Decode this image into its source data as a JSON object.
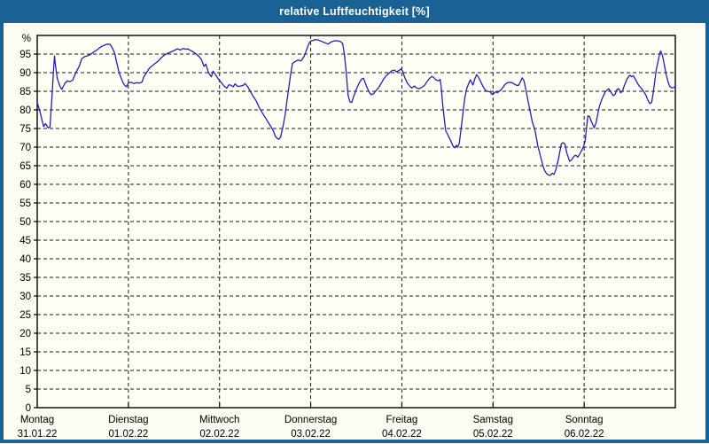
{
  "window": {
    "title": "relative Luftfeuchtigkeit [%]"
  },
  "colors": {
    "frame": "#1a6294",
    "title_text": "#ffffff",
    "content_bg": "#fcfcf2",
    "plot_bg": "#fffff6",
    "grid": "#1a1a1a",
    "axis": "#000000",
    "line": "#2121b4",
    "label_text": "#000000"
  },
  "chart_data": {
    "type": "line",
    "title": "relative Luftfeuchtigkeit [%]",
    "ylabel": "%",
    "xlabel": "",
    "ylim": [
      0,
      100
    ],
    "yticks": [
      0,
      5,
      10,
      15,
      20,
      25,
      30,
      35,
      40,
      45,
      50,
      55,
      60,
      65,
      70,
      75,
      80,
      85,
      90,
      95
    ],
    "grid": "dashed",
    "legend_position": "none",
    "x_axis": {
      "unit": "days",
      "range_days": 7,
      "day_labels": [
        {
          "name": "Montag",
          "date": "31.01.22"
        },
        {
          "name": "Dienstag",
          "date": "01.02.22"
        },
        {
          "name": "Mittwoch",
          "date": "02.02.22"
        },
        {
          "name": "Donnerstag",
          "date": "03.02.22"
        },
        {
          "name": "Freitag",
          "date": "04.02.22"
        },
        {
          "name": "Samstag",
          "date": "05.02.22"
        },
        {
          "name": "Sonntag",
          "date": "06.02.22"
        }
      ]
    },
    "series": [
      {
        "name": "relative Luftfeuchtigkeit",
        "points": [
          [
            0.0,
            82
          ],
          [
            0.03,
            79.5
          ],
          [
            0.07,
            75.5
          ],
          [
            0.09,
            76.3
          ],
          [
            0.12,
            75.2
          ],
          [
            0.14,
            75.4
          ],
          [
            0.16,
            83
          ],
          [
            0.18,
            91
          ],
          [
            0.19,
            94.5
          ],
          [
            0.2,
            92
          ],
          [
            0.22,
            88.5
          ],
          [
            0.25,
            86.3
          ],
          [
            0.27,
            85.5
          ],
          [
            0.3,
            87
          ],
          [
            0.33,
            87.8
          ],
          [
            0.36,
            87.6
          ],
          [
            0.39,
            88
          ],
          [
            0.42,
            89.8
          ],
          [
            0.46,
            91.7
          ],
          [
            0.49,
            93.8
          ],
          [
            0.52,
            94.3
          ],
          [
            0.56,
            94.6
          ],
          [
            0.59,
            95
          ],
          [
            0.62,
            95.6
          ],
          [
            0.65,
            96
          ],
          [
            0.68,
            96.6
          ],
          [
            0.71,
            97.1
          ],
          [
            0.74,
            97.4
          ],
          [
            0.77,
            97.7
          ],
          [
            0.8,
            97.6
          ],
          [
            0.83,
            96.3
          ],
          [
            0.85,
            95.2
          ],
          [
            0.87,
            92.9
          ],
          [
            0.9,
            89.8
          ],
          [
            0.92,
            88.6
          ],
          [
            0.94,
            87.4
          ],
          [
            0.96,
            86.6
          ],
          [
            0.98,
            86.2
          ],
          [
            1.0,
            87.3
          ],
          [
            1.03,
            87.4
          ],
          [
            1.06,
            87.1
          ],
          [
            1.09,
            87.3
          ],
          [
            1.12,
            87.2
          ],
          [
            1.15,
            87.5
          ],
          [
            1.17,
            88.9
          ],
          [
            1.2,
            90
          ],
          [
            1.23,
            91.2
          ],
          [
            1.26,
            91.8
          ],
          [
            1.29,
            92.4
          ],
          [
            1.33,
            93.2
          ],
          [
            1.36,
            94
          ],
          [
            1.4,
            94.8
          ],
          [
            1.43,
            95.2
          ],
          [
            1.46,
            95.5
          ],
          [
            1.49,
            95.8
          ],
          [
            1.52,
            96.2
          ],
          [
            1.54,
            96.4
          ],
          [
            1.57,
            96.1
          ],
          [
            1.6,
            96.5
          ],
          [
            1.63,
            96.3
          ],
          [
            1.65,
            96.4
          ],
          [
            1.68,
            96
          ],
          [
            1.71,
            95.6
          ],
          [
            1.75,
            94.9
          ],
          [
            1.78,
            94.2
          ],
          [
            1.8,
            93.6
          ],
          [
            1.83,
            91.7
          ],
          [
            1.85,
            92.3
          ],
          [
            1.88,
            89.9
          ],
          [
            1.91,
            88.9
          ],
          [
            1.93,
            90.4
          ],
          [
            1.96,
            89.3
          ],
          [
            1.99,
            88.2
          ],
          [
            2.02,
            87.3
          ],
          [
            2.05,
            86.4
          ],
          [
            2.08,
            85.8
          ],
          [
            2.1,
            86.7
          ],
          [
            2.12,
            86.7
          ],
          [
            2.15,
            86.2
          ],
          [
            2.17,
            87
          ],
          [
            2.2,
            86.3
          ],
          [
            2.23,
            86.4
          ],
          [
            2.26,
            86.6
          ],
          [
            2.28,
            87.1
          ],
          [
            2.31,
            86.2
          ],
          [
            2.34,
            84.9
          ],
          [
            2.37,
            83.6
          ],
          [
            2.4,
            82.5
          ],
          [
            2.44,
            80.4
          ],
          [
            2.49,
            78.4
          ],
          [
            2.54,
            76.4
          ],
          [
            2.59,
            74.4
          ],
          [
            2.61,
            73
          ],
          [
            2.63,
            72.4
          ],
          [
            2.65,
            72.1
          ],
          [
            2.67,
            72.7
          ],
          [
            2.7,
            76
          ],
          [
            2.72,
            78.8
          ],
          [
            2.74,
            82.5
          ],
          [
            2.76,
            86
          ],
          [
            2.78,
            89.5
          ],
          [
            2.8,
            92.5
          ],
          [
            2.83,
            93
          ],
          [
            2.86,
            93.4
          ],
          [
            2.88,
            93.2
          ],
          [
            2.9,
            93.3
          ],
          [
            2.93,
            94.5
          ],
          [
            2.96,
            96.5
          ],
          [
            2.98,
            97.8
          ],
          [
            3.0,
            98.5
          ],
          [
            3.03,
            98.7
          ],
          [
            3.05,
            98.9
          ],
          [
            3.08,
            98.8
          ],
          [
            3.11,
            98.5
          ],
          [
            3.14,
            98.2
          ],
          [
            3.17,
            97.9
          ],
          [
            3.19,
            97.7
          ],
          [
            3.22,
            98.2
          ],
          [
            3.25,
            98.5
          ],
          [
            3.28,
            98.6
          ],
          [
            3.31,
            98.5
          ],
          [
            3.33,
            98.3
          ],
          [
            3.35,
            97.8
          ],
          [
            3.37,
            95
          ],
          [
            3.39,
            90
          ],
          [
            3.41,
            84
          ],
          [
            3.43,
            82.2
          ],
          [
            3.45,
            82
          ],
          [
            3.47,
            83.5
          ],
          [
            3.5,
            85.5
          ],
          [
            3.53,
            87.2
          ],
          [
            3.56,
            88.3
          ],
          [
            3.58,
            88.5
          ],
          [
            3.61,
            86.5
          ],
          [
            3.64,
            84.8
          ],
          [
            3.66,
            84.1
          ],
          [
            3.69,
            84.3
          ],
          [
            3.71,
            85
          ],
          [
            3.74,
            85.8
          ],
          [
            3.77,
            87
          ],
          [
            3.8,
            88.3
          ],
          [
            3.83,
            89.2
          ],
          [
            3.86,
            89.9
          ],
          [
            3.89,
            90.5
          ],
          [
            3.92,
            90.7
          ],
          [
            3.94,
            90.2
          ],
          [
            3.97,
            90.6
          ],
          [
            3.99,
            91
          ],
          [
            4.01,
            90.3
          ],
          [
            4.03,
            88.8
          ],
          [
            4.06,
            87.2
          ],
          [
            4.09,
            86.3
          ],
          [
            4.11,
            85.9
          ],
          [
            4.14,
            86.4
          ],
          [
            4.16,
            85.9
          ],
          [
            4.19,
            85.7
          ],
          [
            4.22,
            86.1
          ],
          [
            4.25,
            86.6
          ],
          [
            4.27,
            87.4
          ],
          [
            4.3,
            88.4
          ],
          [
            4.33,
            89
          ],
          [
            4.35,
            88.7
          ],
          [
            4.37,
            88.1
          ],
          [
            4.4,
            87.8
          ],
          [
            4.42,
            88.2
          ],
          [
            4.43,
            86.5
          ],
          [
            4.45,
            81
          ],
          [
            4.48,
            74.5
          ],
          [
            4.51,
            73
          ],
          [
            4.54,
            71.5
          ],
          [
            4.56,
            70.3
          ],
          [
            4.58,
            69.8
          ],
          [
            4.6,
            70.5
          ],
          [
            4.61,
            69.9
          ],
          [
            4.63,
            71
          ],
          [
            4.65,
            75
          ],
          [
            4.67,
            79
          ],
          [
            4.69,
            83.2
          ],
          [
            4.71,
            85.6
          ],
          [
            4.73,
            86.9
          ],
          [
            4.75,
            88.1
          ],
          [
            4.77,
            87.2
          ],
          [
            4.78,
            86.7
          ],
          [
            4.8,
            88.3
          ],
          [
            4.82,
            89.5
          ],
          [
            4.84,
            88.8
          ],
          [
            4.86,
            87.8
          ],
          [
            4.88,
            86.8
          ],
          [
            4.9,
            85.9
          ],
          [
            4.92,
            85.2
          ],
          [
            4.94,
            85
          ],
          [
            4.97,
            84.8
          ],
          [
            4.99,
            84.1
          ],
          [
            5.01,
            84.4
          ],
          [
            5.03,
            84.9
          ],
          [
            5.05,
            84.6
          ],
          [
            5.07,
            85.1
          ],
          [
            5.09,
            85.4
          ],
          [
            5.11,
            86.1
          ],
          [
            5.13,
            86.8
          ],
          [
            5.15,
            87.2
          ],
          [
            5.18,
            87.4
          ],
          [
            5.21,
            87.3
          ],
          [
            5.23,
            87
          ],
          [
            5.26,
            86.6
          ],
          [
            5.28,
            86.6
          ],
          [
            5.3,
            87.5
          ],
          [
            5.32,
            88.6
          ],
          [
            5.34,
            87.8
          ],
          [
            5.36,
            85.5
          ],
          [
            5.38,
            82.9
          ],
          [
            5.4,
            80.5
          ],
          [
            5.43,
            76.9
          ],
          [
            5.46,
            74.5
          ],
          [
            5.47,
            73.3
          ],
          [
            5.49,
            70.5
          ],
          [
            5.52,
            67.6
          ],
          [
            5.55,
            64.8
          ],
          [
            5.57,
            63.5
          ],
          [
            5.59,
            62.8
          ],
          [
            5.61,
            62.5
          ],
          [
            5.63,
            62.4
          ],
          [
            5.65,
            63
          ],
          [
            5.67,
            62.7
          ],
          [
            5.69,
            64
          ],
          [
            5.72,
            67
          ],
          [
            5.75,
            70.9
          ],
          [
            5.77,
            71.2
          ],
          [
            5.79,
            70.8
          ],
          [
            5.81,
            68.4
          ],
          [
            5.84,
            66.2
          ],
          [
            5.86,
            66.5
          ],
          [
            5.89,
            67.6
          ],
          [
            5.91,
            67.8
          ],
          [
            5.93,
            67.3
          ],
          [
            5.96,
            68.5
          ],
          [
            5.99,
            70
          ],
          [
            6.01,
            71.5
          ],
          [
            6.03,
            76
          ],
          [
            6.04,
            78.4
          ],
          [
            6.06,
            78.2
          ],
          [
            6.08,
            76.8
          ],
          [
            6.11,
            75.2
          ],
          [
            6.13,
            76.5
          ],
          [
            6.15,
            79
          ],
          [
            6.17,
            81.2
          ],
          [
            6.2,
            83.2
          ],
          [
            6.23,
            84.8
          ],
          [
            6.25,
            85.3
          ],
          [
            6.27,
            85.7
          ],
          [
            6.3,
            84.5
          ],
          [
            6.32,
            83.8
          ],
          [
            6.34,
            84.2
          ],
          [
            6.36,
            85.5
          ],
          [
            6.38,
            85.7
          ],
          [
            6.4,
            84.6
          ],
          [
            6.42,
            85
          ],
          [
            6.44,
            86.5
          ],
          [
            6.47,
            88.3
          ],
          [
            6.49,
            89
          ],
          [
            6.5,
            89.3
          ],
          [
            6.52,
            88.9
          ],
          [
            6.54,
            89.2
          ],
          [
            6.56,
            88.3
          ],
          [
            6.58,
            87.4
          ],
          [
            6.6,
            86.5
          ],
          [
            6.62,
            86
          ],
          [
            6.64,
            85.4
          ],
          [
            6.66,
            84.7
          ],
          [
            6.68,
            83.8
          ],
          [
            6.7,
            82.6
          ],
          [
            6.72,
            81.7
          ],
          [
            6.74,
            82
          ],
          [
            6.76,
            85
          ],
          [
            6.79,
            90.7
          ],
          [
            6.81,
            93
          ],
          [
            6.83,
            95.3
          ],
          [
            6.84,
            95.8
          ],
          [
            6.86,
            94.5
          ],
          [
            6.88,
            92
          ],
          [
            6.9,
            89.5
          ],
          [
            6.92,
            87.5
          ],
          [
            6.94,
            86.3
          ],
          [
            6.96,
            85.9
          ],
          [
            6.98,
            86
          ],
          [
            7.0,
            86.2
          ]
        ]
      }
    ]
  }
}
